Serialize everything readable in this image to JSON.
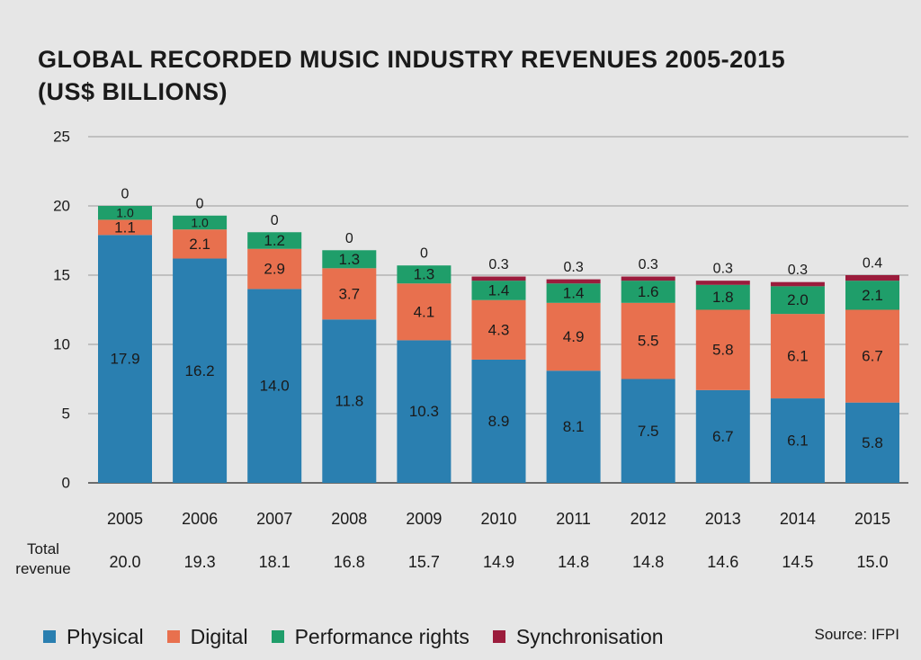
{
  "chart_data": {
    "type": "bar",
    "stacked": true,
    "title": "GLOBAL RECORDED MUSIC INDUSTRY REVENUES 2005-2015",
    "subtitle": "(US$ BILLIONS)",
    "categories": [
      "2005",
      "2006",
      "2007",
      "2008",
      "2009",
      "2010",
      "2011",
      "2012",
      "2013",
      "2014",
      "2015"
    ],
    "series": [
      {
        "name": "Physical",
        "color": "#2a7fb0",
        "values": [
          17.9,
          16.2,
          14.0,
          11.8,
          10.3,
          8.9,
          8.1,
          7.5,
          6.7,
          6.1,
          5.8
        ],
        "labels": [
          "17.9",
          "16.2",
          "14.0",
          "11.8",
          "10.3",
          "8.9",
          "8.1",
          "7.5",
          "6.7",
          "6.1",
          "5.8"
        ]
      },
      {
        "name": "Digital",
        "color": "#e8704e",
        "values": [
          1.1,
          2.1,
          2.9,
          3.7,
          4.1,
          4.3,
          4.9,
          5.5,
          5.8,
          6.1,
          6.7
        ],
        "labels": [
          "1.1",
          "2.1",
          "2.9",
          "3.7",
          "4.1",
          "4.3",
          "4.9",
          "5.5",
          "5.8",
          "6.1",
          "6.7"
        ]
      },
      {
        "name": "Performance rights",
        "color": "#1f9e6a",
        "values": [
          1.0,
          1.0,
          1.2,
          1.3,
          1.3,
          1.4,
          1.4,
          1.6,
          1.8,
          2.0,
          2.1
        ],
        "labels": [
          "1.0",
          "1.0",
          "1.2",
          "1.3",
          "1.3",
          "1.4",
          "1.4",
          "1.6",
          "1.8",
          "2.0",
          "2.1"
        ]
      },
      {
        "name": "Synchronisation",
        "color": "#9b1c3c",
        "values": [
          0,
          0,
          0,
          0,
          0,
          0.3,
          0.3,
          0.3,
          0.3,
          0.3,
          0.4
        ],
        "labels": [
          "0",
          "0",
          "0",
          "0",
          "0",
          "0.3",
          "0.3",
          "0.3",
          "0.3",
          "0.3",
          "0.4"
        ]
      }
    ],
    "total_revenue_label_line1": "Total",
    "total_revenue_label_line2": "revenue",
    "total_revenue": [
      "20.0",
      "19.3",
      "18.1",
      "16.8",
      "15.7",
      "14.9",
      "14.8",
      "14.8",
      "14.6",
      "14.5",
      "15.0"
    ],
    "yticks": [
      "0",
      "5",
      "10",
      "15",
      "20",
      "25"
    ],
    "ylim": [
      0,
      25
    ],
    "grid": true,
    "legend": "bottom",
    "source": "Source: IFPI"
  }
}
